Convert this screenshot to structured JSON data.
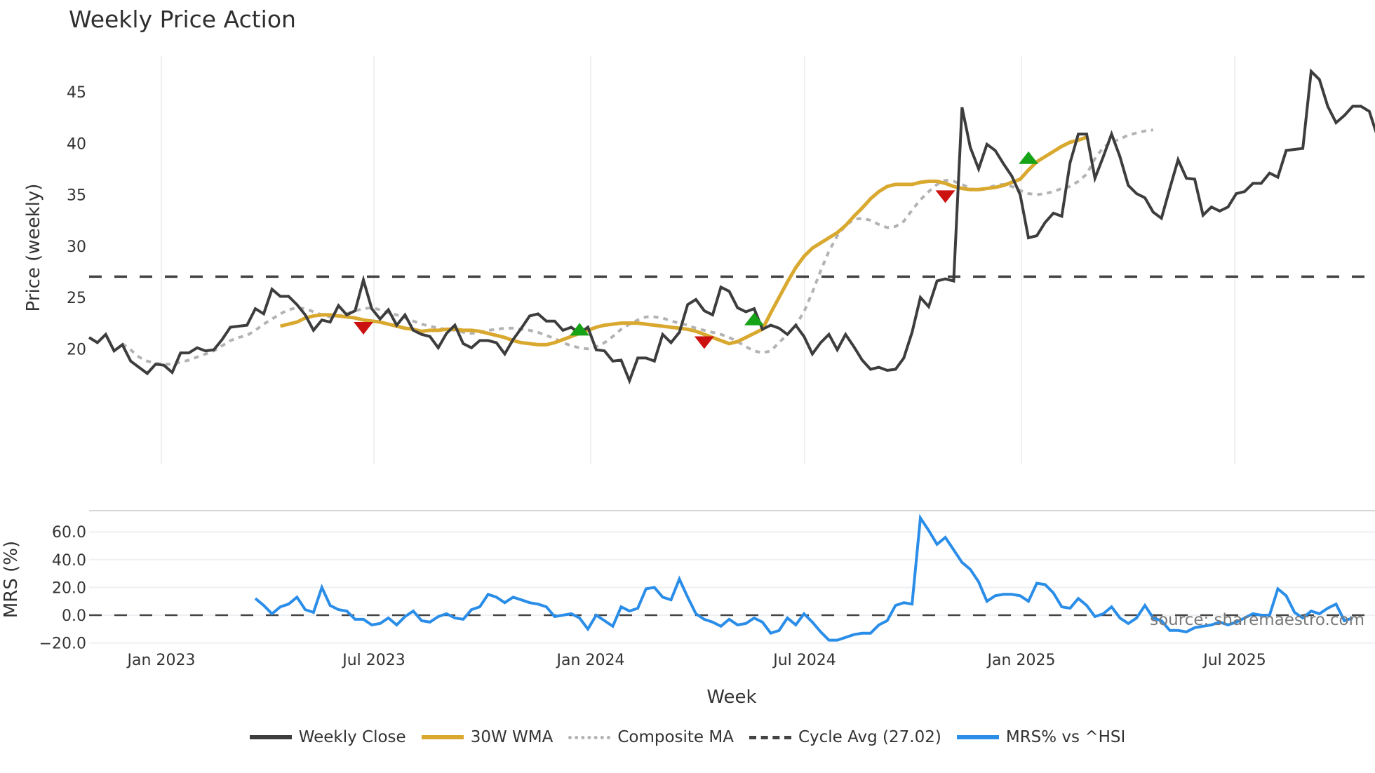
{
  "title": "Weekly Price Action",
  "xlabel": "Week",
  "source": "source: sharemaestro.com",
  "colors": {
    "close": "#3d3d3d",
    "wma": "#d9a82e",
    "composite": "#b3b3b3",
    "cycle": "#444444",
    "mrs": "#2a8de8",
    "buy": "#17a317",
    "sell": "#cc1111",
    "grid": "#eef0f3"
  },
  "legend": [
    {
      "label": "Weekly Close",
      "style": "solid",
      "color": "#3d3d3d"
    },
    {
      "label": "30W WMA",
      "style": "solid",
      "color": "#d9a82e"
    },
    {
      "label": "Composite MA",
      "style": "dotted",
      "color": "#b3b3b3"
    },
    {
      "label": "Cycle Avg (27.02)",
      "style": "dashed",
      "color": "#444444"
    },
    {
      "label": "MRS% vs ^HSI",
      "style": "solid",
      "color": "#2a8de8"
    }
  ],
  "chart_data": [
    {
      "type": "line",
      "title": "Weekly Price Action",
      "ylabel": "Price (weekly)",
      "xlabel": "Week",
      "yticks": [
        20,
        25,
        30,
        35,
        40,
        45
      ],
      "ylim": [
        15.5,
        48
      ],
      "x_tick_labels": [
        "Jan 2023",
        "Jul 2023",
        "Jan 2024",
        "Jul 2024",
        "Jan 2025",
        "Jul 2025"
      ],
      "x_range": [
        "2022-11",
        "2025-10"
      ],
      "grid": "vertical",
      "cycle_avg": 27.02,
      "series": [
        {
          "name": "Weekly Close",
          "start_index": 0,
          "values": [
            21.1,
            20.6,
            21.4,
            19.8,
            20.4,
            18.8,
            18.2,
            17.6,
            18.5,
            18.4,
            17.7,
            19.6,
            19.6,
            20.1,
            19.8,
            19.9,
            20.9,
            22.1,
            22.2,
            22.3,
            23.9,
            23.4,
            25.8,
            25.1,
            25.1,
            24.3,
            23.3,
            21.8,
            22.8,
            22.6,
            24.2,
            23.3,
            23.7,
            26.7,
            23.9,
            22.9,
            23.8,
            22.3,
            23.3,
            21.8,
            21.4,
            21.2,
            20.1,
            21.5,
            22.3,
            20.5,
            20.1,
            20.8,
            20.8,
            20.6,
            19.5,
            20.9,
            22.0,
            23.2,
            23.4,
            22.7,
            22.7,
            21.8,
            22.1,
            21.5,
            22.1,
            19.9,
            19.8,
            18.8,
            18.9,
            16.9,
            19.1,
            19.1,
            18.8,
            21.4,
            20.6,
            21.6,
            24.3,
            24.8,
            23.7,
            23.3,
            26.0,
            25.6,
            24.0,
            23.6,
            23.9,
            21.9,
            22.3,
            22.0,
            21.4,
            22.3,
            21.2,
            19.5,
            20.6,
            21.4,
            19.9,
            21.4,
            20.2,
            18.9,
            18.0,
            18.2,
            17.9,
            18.0,
            19.1,
            21.6,
            25.0,
            24.1,
            26.6,
            26.8,
            26.6,
            43.5,
            39.6,
            37.5,
            39.9,
            39.3,
            38.0,
            36.8,
            35.0,
            30.8,
            31.0,
            32.3,
            33.2,
            32.9,
            38.1,
            40.9,
            40.9,
            36.6,
            38.7,
            40.9,
            38.7,
            35.9,
            35.1,
            34.7,
            33.3,
            32.7,
            35.6,
            38.4,
            36.6,
            36.5,
            33.0,
            33.8,
            33.4,
            33.8,
            35.1,
            35.3,
            36.1,
            36.1,
            37.1,
            36.7,
            39.3,
            39.4,
            39.5,
            47.0,
            46.2,
            43.6,
            42.0,
            42.7,
            43.6,
            43.6,
            43.1,
            40.6,
            41.6
          ]
        },
        {
          "name": "30W WMA",
          "start_index": 23,
          "values": [
            22.2,
            22.4,
            22.6,
            23.0,
            23.2,
            23.3,
            23.3,
            23.2,
            23.1,
            23.0,
            22.8,
            22.7,
            22.6,
            22.4,
            22.2,
            22.0,
            21.9,
            21.7,
            21.8,
            21.8,
            21.9,
            21.9,
            21.8,
            21.8,
            21.7,
            21.5,
            21.3,
            21.1,
            20.8,
            20.6,
            20.5,
            20.4,
            20.4,
            20.6,
            20.9,
            21.2,
            21.5,
            21.8,
            22.1,
            22.3,
            22.4,
            22.5,
            22.5,
            22.5,
            22.4,
            22.3,
            22.2,
            22.1,
            22.0,
            21.9,
            21.7,
            21.4,
            21.1,
            20.8,
            20.5,
            20.7,
            21.1,
            21.5,
            21.9,
            23.5,
            25.0,
            26.5,
            27.9,
            29.0,
            29.8,
            30.3,
            30.8,
            31.3,
            32.0,
            32.9,
            33.7,
            34.6,
            35.3,
            35.8,
            36.0,
            36.0,
            36.0,
            36.2,
            36.3,
            36.3,
            36.1,
            35.8,
            35.6,
            35.5,
            35.5,
            35.6,
            35.7,
            35.9,
            36.2,
            36.5,
            37.4,
            38.2,
            38.7,
            39.2,
            39.7,
            40.1,
            40.3,
            40.6
          ]
        },
        {
          "name": "Composite MA",
          "start_index": 4,
          "values": [
            20.5,
            19.9,
            19.2,
            18.8,
            18.6,
            18.5,
            18.5,
            18.7,
            18.9,
            19.2,
            19.5,
            19.8,
            20.3,
            20.8,
            21.1,
            21.3,
            21.8,
            22.4,
            22.9,
            23.4,
            23.8,
            24.0,
            23.9,
            23.6,
            23.3,
            23.1,
            23.2,
            23.4,
            23.7,
            23.9,
            24.0,
            23.8,
            23.5,
            23.3,
            23.0,
            22.7,
            22.4,
            22.2,
            22.0,
            21.9,
            21.8,
            21.6,
            21.5,
            21.6,
            21.8,
            21.9,
            22.0,
            22.0,
            21.9,
            21.8,
            21.6,
            21.3,
            21.0,
            20.6,
            20.3,
            20.1,
            20.0,
            20.2,
            20.6,
            21.2,
            21.9,
            22.4,
            22.8,
            23.1,
            23.1,
            23.0,
            22.7,
            22.5,
            22.3,
            22.0,
            21.8,
            21.6,
            21.4,
            21.1,
            20.7,
            20.2,
            19.8,
            19.6,
            19.8,
            20.6,
            21.4,
            22.3,
            23.6,
            25.5,
            27.6,
            29.5,
            31.0,
            32.0,
            32.6,
            32.7,
            32.5,
            32.1,
            31.8,
            31.9,
            32.4,
            33.5,
            34.5,
            35.3,
            36.0,
            36.4,
            36.3,
            36.0,
            35.6,
            35.4,
            35.6,
            35.9,
            36.0,
            35.8,
            35.4,
            35.1,
            35.0,
            35.1,
            35.3,
            35.6,
            35.8,
            36.3,
            37.0,
            38.5,
            39.6,
            40.1,
            40.4,
            40.8,
            41.0,
            41.2,
            41.3
          ]
        }
      ],
      "markers": [
        {
          "type": "sell",
          "index": 33,
          "value": 22.0
        },
        {
          "type": "buy",
          "index": 59,
          "value": 21.9
        },
        {
          "type": "sell",
          "index": 74,
          "value": 20.6
        },
        {
          "type": "buy",
          "index": 80,
          "value": 22.9
        },
        {
          "type": "sell",
          "index": 103,
          "value": 34.8
        },
        {
          "type": "buy",
          "index": 113,
          "value": 38.6
        }
      ]
    },
    {
      "type": "line",
      "ylabel": "MRS (%)",
      "yticks": [
        -20.0,
        0.0,
        20.0,
        40.0,
        60.0
      ],
      "ytick_labels": [
        "−20.0",
        "0.0",
        "20.0",
        "40.0",
        "60.0"
      ],
      "ylim": [
        -22,
        76
      ],
      "zero_line": 0.0,
      "series": [
        {
          "name": "MRS% vs ^HSI",
          "start_index": 20,
          "values": [
            12,
            7,
            1,
            6,
            8,
            13,
            4,
            2,
            20,
            7,
            4,
            3,
            -3,
            -3,
            -7,
            -6,
            -2,
            -7,
            -1,
            3,
            -4,
            -5,
            -1,
            1,
            -2,
            -3,
            4,
            6,
            15,
            13,
            9,
            13,
            11,
            9,
            8,
            6,
            -1,
            0,
            1,
            -2,
            -10,
            0,
            -4,
            -8,
            6,
            3,
            5,
            19,
            20,
            13,
            11,
            26,
            13,
            1,
            -3,
            -5,
            -8,
            -3,
            -7,
            -6,
            -2,
            -5,
            -13,
            -11,
            -2,
            -7,
            1,
            -5,
            -12,
            -18,
            -18,
            -16,
            -14,
            -13,
            -13,
            -7,
            -4,
            7,
            9,
            8,
            70,
            61,
            51,
            56,
            47,
            38,
            33,
            24,
            10,
            14,
            15,
            15,
            14,
            10,
            23,
            22,
            16,
            6,
            5,
            12,
            7,
            -1,
            1,
            6,
            -2,
            -6,
            -2,
            7,
            -2,
            -4,
            -11,
            -11,
            -12,
            -9,
            -8,
            -7,
            -5,
            -7,
            -5,
            -2,
            1,
            0,
            0,
            19,
            14,
            2,
            -2,
            3,
            1,
            5,
            8,
            -4,
            -2
          ]
        }
      ]
    }
  ]
}
